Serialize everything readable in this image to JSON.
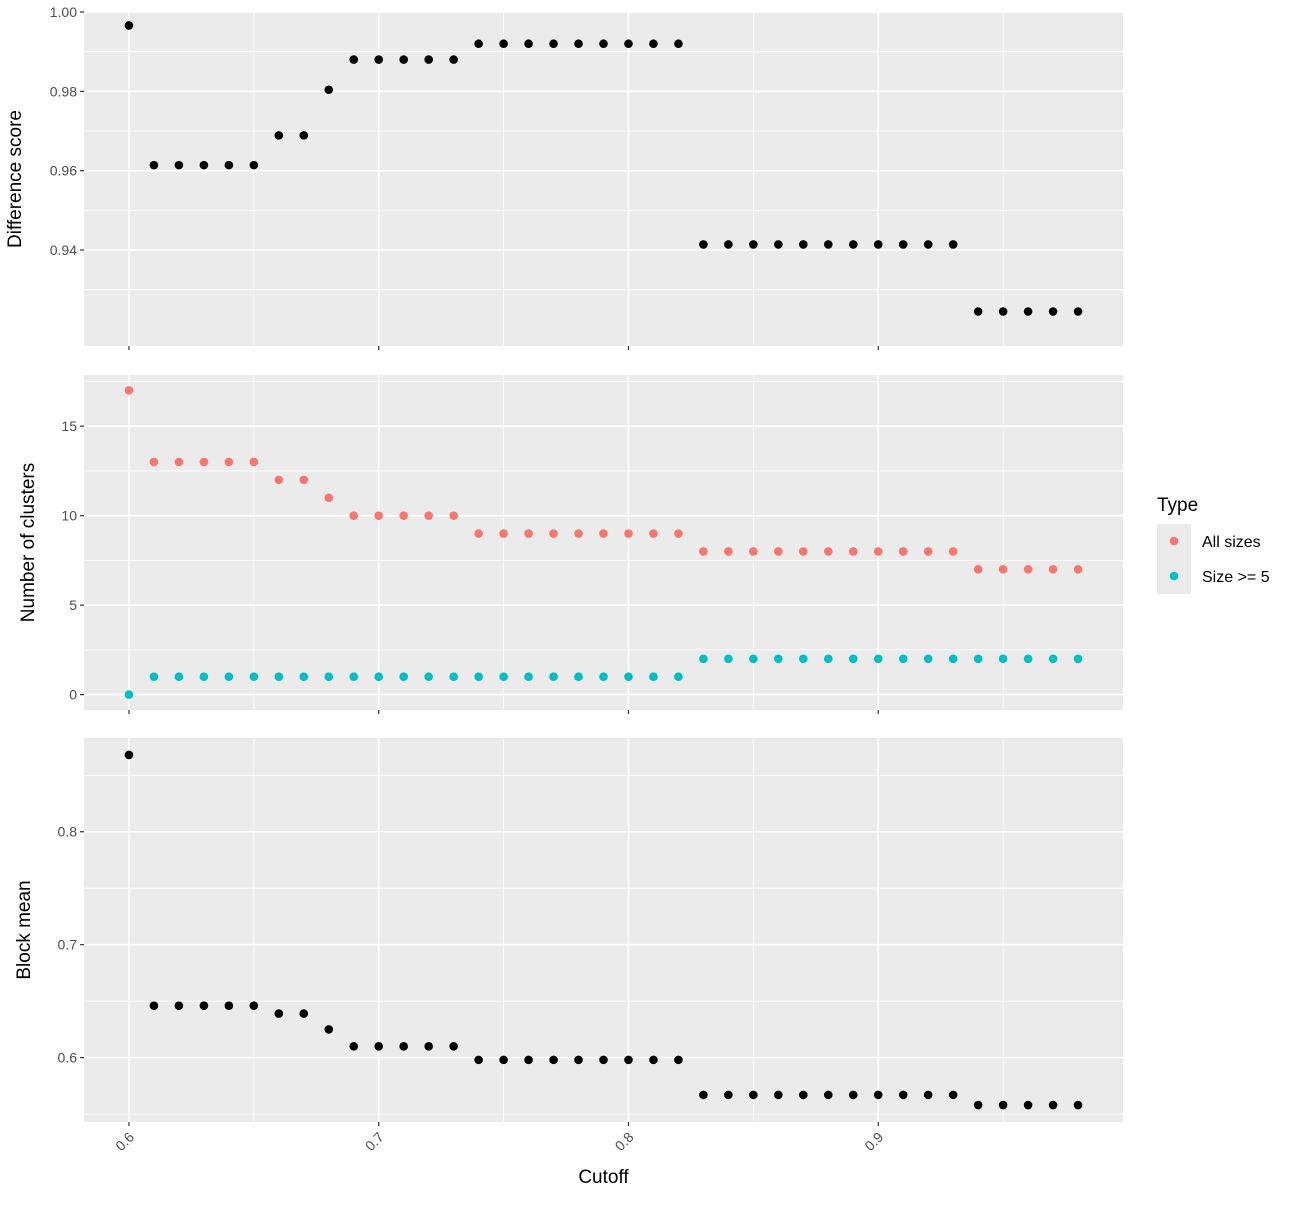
{
  "chart_data": {
    "type": "scatter",
    "x": [
      0.6,
      0.61,
      0.62,
      0.63,
      0.64,
      0.65,
      0.66,
      0.67,
      0.68,
      0.69,
      0.7,
      0.71,
      0.72,
      0.73,
      0.74,
      0.75,
      0.76,
      0.77,
      0.78,
      0.79,
      0.8,
      0.81,
      0.82,
      0.83,
      0.84,
      0.85,
      0.86,
      0.87,
      0.88,
      0.89,
      0.9,
      0.91,
      0.92,
      0.93,
      0.94,
      0.95,
      0.96,
      0.97,
      0.98
    ],
    "xlabel": "Cutoff",
    "x_ticks": [
      "0.6",
      "0.7",
      "0.8",
      "0.9"
    ],
    "xlim": [
      0.582,
      0.998
    ],
    "grid": true,
    "legend_position": "right",
    "panels": [
      {
        "ylabel": "Difference score",
        "ylim": [
          0.9158,
          1.0
        ],
        "y_ticks": [
          "0.94",
          "0.96",
          "0.98",
          "1.00"
        ],
        "series": [
          {
            "color": "#000000",
            "values": [
              0.9966,
              0.9614,
              0.9614,
              0.9614,
              0.9614,
              0.9614,
              0.9689,
              0.9689,
              0.9804,
              0.988,
              0.988,
              0.988,
              0.988,
              0.988,
              0.992,
              0.992,
              0.992,
              0.992,
              0.992,
              0.992,
              0.992,
              0.992,
              0.992,
              0.9414,
              0.9414,
              0.9414,
              0.9414,
              0.9414,
              0.9414,
              0.9414,
              0.9414,
              0.9414,
              0.9414,
              0.9414,
              0.9245,
              0.9245,
              0.9245,
              0.9245,
              0.9245
            ]
          }
        ]
      },
      {
        "ylabel": "Number of clusters",
        "ylim": [
          -0.86,
          17.86
        ],
        "y_ticks": [
          "0",
          "5",
          "10",
          "15"
        ],
        "series": [
          {
            "name": "All sizes",
            "color": "#F8766D",
            "values": [
              17,
              13,
              13,
              13,
              13,
              13,
              12,
              12,
              11,
              10,
              10,
              10,
              10,
              10,
              9,
              9,
              9,
              9,
              9,
              9,
              9,
              9,
              9,
              8,
              8,
              8,
              8,
              8,
              8,
              8,
              8,
              8,
              8,
              8,
              7,
              7,
              7,
              7,
              7
            ]
          },
          {
            "name": "Size >= 5",
            "color": "#00BFC4",
            "values": [
              0,
              1,
              1,
              1,
              1,
              1,
              1,
              1,
              1,
              1,
              1,
              1,
              1,
              1,
              1,
              1,
              1,
              1,
              1,
              1,
              1,
              1,
              1,
              2,
              2,
              2,
              2,
              2,
              2,
              2,
              2,
              2,
              2,
              2,
              2,
              2,
              2,
              2,
              2
            ]
          }
        ]
      },
      {
        "ylabel": "Block mean",
        "ylim": [
          0.543,
          0.883
        ],
        "y_ticks": [
          "0.6",
          "0.7",
          "0.8"
        ],
        "series": [
          {
            "color": "#000000",
            "values": [
              0.868,
              0.646,
              0.646,
              0.646,
              0.646,
              0.646,
              0.639,
              0.639,
              0.625,
              0.61,
              0.61,
              0.61,
              0.61,
              0.61,
              0.598,
              0.598,
              0.598,
              0.598,
              0.598,
              0.598,
              0.598,
              0.598,
              0.598,
              0.567,
              0.567,
              0.567,
              0.567,
              0.567,
              0.567,
              0.567,
              0.567,
              0.567,
              0.567,
              0.567,
              0.558,
              0.558,
              0.558,
              0.558,
              0.558
            ]
          }
        ]
      }
    ],
    "legend": {
      "title": "Type",
      "entries": [
        {
          "label": "All sizes",
          "color": "#F8766D"
        },
        {
          "label": "Size >= 5",
          "color": "#00BFC4"
        }
      ]
    },
    "panel_background": "#EBEBEB",
    "gridline_color": "#FFFFFF",
    "tick_color": "#333333"
  }
}
